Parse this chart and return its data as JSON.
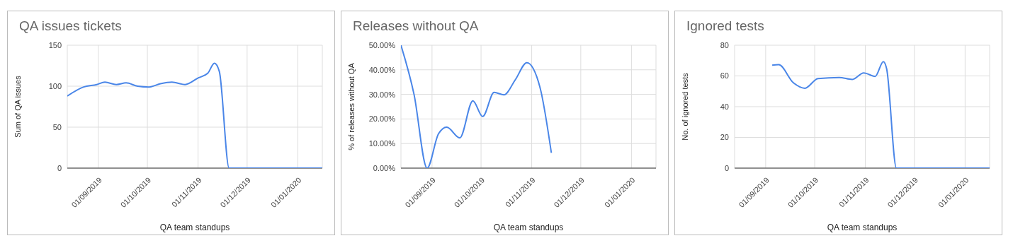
{
  "chart_data": [
    {
      "type": "line",
      "title": "QA issues tickets",
      "xlabel": "QA team standups",
      "ylabel": "Sum of QA issues",
      "x": [
        "2019-08-13",
        "2019-08-23",
        "2019-08-31",
        "2019-09-05",
        "2019-09-12",
        "2019-09-18",
        "2019-09-25",
        "2019-10-02",
        "2019-10-09",
        "2019-10-16",
        "2019-10-24",
        "2019-11-01",
        "2019-11-07",
        "2019-11-11",
        "2019-11-14",
        "2019-11-20",
        "2019-11-27",
        "2019-12-11",
        "2019-12-25",
        "2020-01-08",
        "2020-01-16"
      ],
      "series": [
        {
          "color": "#4a86e8",
          "values": [
            88,
            99,
            102,
            105,
            102,
            104,
            100,
            99,
            103,
            105,
            102,
            110,
            116,
            128,
            118,
            0,
            0,
            0,
            0,
            0,
            0
          ]
        }
      ],
      "xlim": [
        "2019-08-13",
        "2020-01-16"
      ],
      "xticks": [
        {
          "value": "2019-09-01",
          "label": "01/09/2019"
        },
        {
          "value": "2019-10-01",
          "label": "01/10/2019"
        },
        {
          "value": "2019-11-01",
          "label": "01/11/2019"
        },
        {
          "value": "2019-12-01",
          "label": "01/12/2019"
        },
        {
          "value": "2020-01-01",
          "label": "01/01/2020"
        }
      ],
      "ylim": [
        0,
        150
      ],
      "yticks": [
        0,
        50,
        100,
        150
      ],
      "grid": true,
      "line_style": "solid"
    },
    {
      "type": "line",
      "title": "Releases without QA",
      "xlabel": "QA team standups",
      "ylabel": "% of releases without QA",
      "x": [
        "2019-08-13",
        "2019-08-21",
        "2019-08-29",
        "2019-09-05",
        "2019-09-10",
        "2019-09-18",
        "2019-09-26",
        "2019-10-02",
        "2019-10-09",
        "2019-10-15",
        "2019-10-22",
        "2019-10-29",
        "2019-11-06",
        "2019-11-13"
      ],
      "series": [
        {
          "color": "#4a86e8",
          "values": [
            50,
            30,
            0,
            14,
            16.7,
            12.3,
            27.4,
            21,
            30.8,
            29.8,
            36,
            42.9,
            33,
            6.2
          ]
        }
      ],
      "xlim": [
        "2019-08-13",
        "2020-01-16"
      ],
      "xticks": [
        {
          "value": "2019-09-01",
          "label": "01/09/2019"
        },
        {
          "value": "2019-10-01",
          "label": "01/10/2019"
        },
        {
          "value": "2019-11-01",
          "label": "01/11/2019"
        },
        {
          "value": "2019-12-01",
          "label": "01/12/2019"
        },
        {
          "value": "2020-01-01",
          "label": "01/01/2020"
        }
      ],
      "ylim": [
        0,
        50
      ],
      "yticks": [
        {
          "value": 0,
          "label": "0.00%"
        },
        {
          "value": 10,
          "label": "10.00%"
        },
        {
          "value": 20,
          "label": "20.00%"
        },
        {
          "value": 30,
          "label": "30.00%"
        },
        {
          "value": 40,
          "label": "40.00%"
        },
        {
          "value": 50,
          "label": "50.00%"
        }
      ],
      "grid": true,
      "line_style": "solid"
    },
    {
      "type": "line",
      "title": "Ignored tests",
      "xlabel": "QA team standups",
      "ylabel": "No. of ignored tests",
      "x": [
        "2019-09-05",
        "2019-09-09",
        "2019-09-18",
        "2019-09-25",
        "2019-10-03",
        "2019-10-16",
        "2019-10-24",
        "2019-10-31",
        "2019-11-07",
        "2019-11-12",
        "2019-11-14",
        "2019-11-20",
        "2019-11-27",
        "2019-12-11",
        "2019-12-25",
        "2020-01-08",
        "2020-01-16"
      ],
      "series": [
        {
          "color": "#4a86e8",
          "values": [
            67,
            67.3,
            55.5,
            52,
            58.3,
            59,
            57.7,
            62,
            59.7,
            69.3,
            64.7,
            0,
            0,
            0,
            0,
            0,
            0
          ]
        }
      ],
      "xlim": [
        "2019-08-13",
        "2020-01-16"
      ],
      "xticks": [
        {
          "value": "2019-09-01",
          "label": "01/09/2019"
        },
        {
          "value": "2019-10-01",
          "label": "01/10/2019"
        },
        {
          "value": "2019-11-01",
          "label": "01/11/2019"
        },
        {
          "value": "2019-12-01",
          "label": "01/12/2019"
        },
        {
          "value": "2020-01-01",
          "label": "01/01/2020"
        }
      ],
      "ylim": [
        0,
        80
      ],
      "yticks": [
        0,
        20,
        40,
        60,
        80
      ],
      "grid": true,
      "line_style": "solid"
    }
  ]
}
